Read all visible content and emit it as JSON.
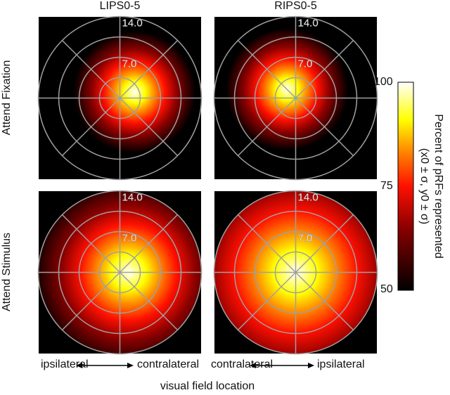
{
  "chart_data": [
    {
      "type": "heatmap",
      "title": "LIPS0-5",
      "row": "Attend Fixation",
      "ring_labels": [
        "14.0",
        "7.0"
      ],
      "rings_deg": [
        3.5,
        7,
        10.5,
        14
      ],
      "peak_center_deg": [
        2.5,
        1.0
      ],
      "spread_deg": 10.5
    },
    {
      "type": "heatmap",
      "title": "RIPS0-5",
      "row": "Attend Fixation",
      "ring_labels": [
        "14.0",
        "7.0"
      ],
      "rings_deg": [
        3.5,
        7,
        10.5,
        14
      ],
      "peak_center_deg": [
        -1.5,
        1.5
      ],
      "spread_deg": 10.5
    },
    {
      "type": "heatmap",
      "title": "LIPS0-5",
      "row": "Attend Stimulus",
      "ring_labels": [
        "14.0",
        "7.0"
      ],
      "rings_deg": [
        3.5,
        7,
        10.5,
        14
      ],
      "peak_center_deg": [
        1.5,
        0
      ],
      "spread_deg": 16.5
    },
    {
      "type": "heatmap",
      "title": "RIPS0-5",
      "row": "Attend Stimulus",
      "ring_labels": [
        "14.0",
        "7.0"
      ],
      "rings_deg": [
        3.5,
        7,
        10.5,
        14
      ],
      "peak_center_deg": [
        0,
        0
      ],
      "spread_deg": 21
    }
  ],
  "columns": [
    "LIPS0-5",
    "RIPS0-5"
  ],
  "rows": [
    "Attend Fixation",
    "Attend Stimulus"
  ],
  "colorbar": {
    "label": "Percent of pRFs represented",
    "sublabel": "(x0 ± σ, y0 ± σ)",
    "ticks": [
      "100",
      "75",
      "50"
    ],
    "range": [
      50,
      100
    ],
    "colormap": "hot"
  },
  "direction_labels": {
    "left": {
      "a": "ipsilateral",
      "b": "contralateral"
    },
    "right": {
      "a": "contralateral",
      "b": "ipsilateral"
    }
  },
  "xlabel": "visual field location"
}
